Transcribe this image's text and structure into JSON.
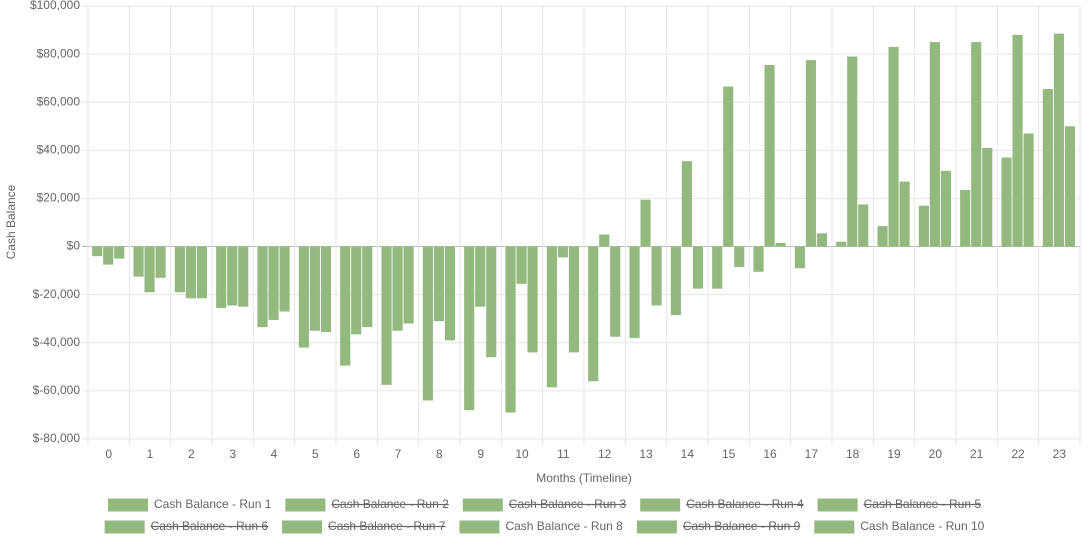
{
  "chart_data": {
    "type": "bar",
    "y_label": "Cash Balance",
    "x_label": "Months (Timeline)",
    "categories": [
      "0",
      "1",
      "2",
      "3",
      "4",
      "5",
      "6",
      "7",
      "8",
      "9",
      "10",
      "11",
      "12",
      "13",
      "14",
      "15",
      "16",
      "17",
      "18",
      "19",
      "20",
      "21",
      "22",
      "23"
    ],
    "ylim": [
      -80000,
      100000
    ],
    "yticks": [
      {
        "value": -80000,
        "label": "$-80,000"
      },
      {
        "value": -60000,
        "label": "$-60,000"
      },
      {
        "value": -40000,
        "label": "$-40,000"
      },
      {
        "value": -20000,
        "label": "$-20,000"
      },
      {
        "value": 0,
        "label": "$0"
      },
      {
        "value": 20000,
        "label": "$20,000"
      },
      {
        "value": 40000,
        "label": "$40,000"
      },
      {
        "value": 60000,
        "label": "$60,000"
      },
      {
        "value": 80000,
        "label": "$80,000"
      },
      {
        "value": 100000,
        "label": "$100,000"
      }
    ],
    "grid": true,
    "legend": "bottom",
    "series": [
      {
        "name": "Cash Balance - Run 1",
        "color": "#93b97f",
        "values": [
          -4000,
          -12500,
          -19000,
          -25500,
          -33500,
          -42000,
          -49500,
          -57500,
          -64000,
          -68000,
          -69000,
          -58500,
          -56000,
          -38000,
          -28500,
          -17500,
          -10500,
          -9000,
          2000,
          8500,
          17000,
          23500,
          37000,
          65500
        ]
      },
      {
        "name": "Cash Balance - Run 2",
        "color": "#93b97f",
        "hidden": true
      },
      {
        "name": "Cash Balance - Run 3",
        "color": "#93b97f",
        "hidden": true
      },
      {
        "name": "Cash Balance - Run 4",
        "color": "#93b97f",
        "hidden": true
      },
      {
        "name": "Cash Balance - Run 5",
        "color": "#93b97f",
        "hidden": true
      },
      {
        "name": "Cash Balance - Run 6",
        "color": "#93b97f",
        "hidden": true
      },
      {
        "name": "Cash Balance - Run 7",
        "color": "#93b97f",
        "hidden": true
      },
      {
        "name": "Cash Balance - Run 8",
        "color": "#93b97f",
        "values": [
          -7500,
          -19000,
          -21500,
          -24500,
          -30500,
          -35000,
          -36500,
          -35000,
          -31000,
          -25000,
          -15500,
          -4500,
          5000,
          19500,
          35500,
          66500,
          75500,
          77500,
          79000,
          83000,
          85000,
          85000,
          88000,
          88500
        ]
      },
      {
        "name": "Cash Balance - Run 9",
        "color": "#93b97f",
        "hidden": true
      },
      {
        "name": "Cash Balance - Run 10",
        "color": "#93b97f",
        "values": [
          -5000,
          -13000,
          -21500,
          -25000,
          -27000,
          -35500,
          -33500,
          -32000,
          -39000,
          -46000,
          -44000,
          -44000,
          -37500,
          -24500,
          -17500,
          -8500,
          1500,
          5500,
          17500,
          27000,
          31500,
          41000,
          47000,
          50000
        ]
      }
    ]
  }
}
